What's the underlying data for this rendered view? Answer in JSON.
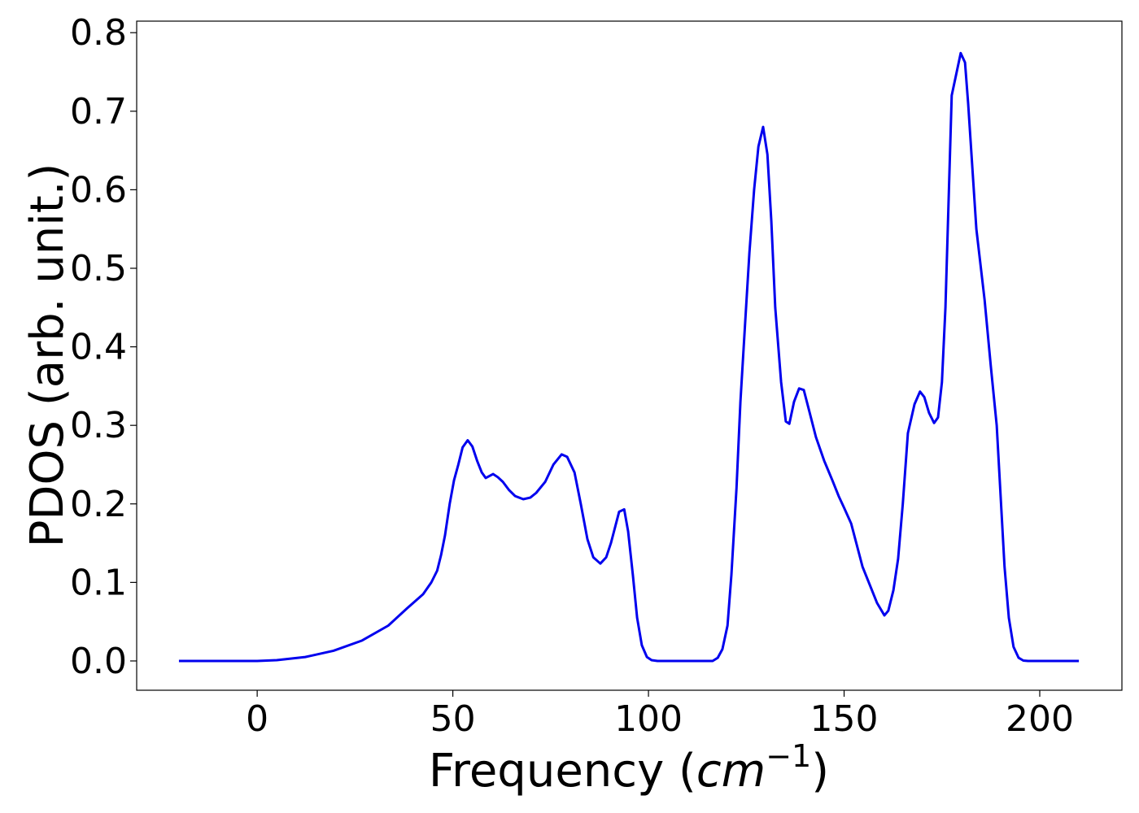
{
  "chart_data": {
    "type": "line",
    "xlabel_parts": [
      "Frequency (",
      "cm",
      "−1",
      ")"
    ],
    "ylabel": "PDOS (arb. unit.)",
    "xlim": [
      -30.8,
      221
    ],
    "xticks": [
      0,
      50,
      100,
      150,
      200
    ],
    "ylim": [
      -0.0373,
      0.8147
    ],
    "yticks": [
      {
        "value": 0,
        "label": "0.0"
      },
      0.1,
      0.2,
      0.3,
      0.4,
      0.5,
      0.6,
      0.7,
      0.8
    ],
    "x": [
      -20,
      0,
      5,
      12.3,
      19.5,
      26.8,
      33.5,
      38.3,
      42.4,
      44.5,
      46,
      47,
      48,
      49.2,
      50.3,
      51.4,
      52.5,
      53.8,
      55,
      56.2,
      57.4,
      58.4,
      60.3,
      61.5,
      62.8,
      64.3,
      65.9,
      68,
      69.8,
      71.3,
      73.6,
      75.7,
      77.8,
      79.2,
      81.1,
      82.7,
      84.4,
      85.9,
      87.7,
      89.2,
      90.4,
      92.5,
      93.8,
      94.8,
      96,
      97.1,
      98.3,
      99.6,
      100.8,
      102.3,
      116.4,
      117.7,
      118.9,
      120.2,
      121.2,
      122.5,
      123.5,
      124.7,
      125.8,
      127,
      128.1,
      129.3,
      130.4,
      131.4,
      132.4,
      133.9,
      135.1,
      136,
      137.2,
      138.5,
      139.7,
      141,
      142.8,
      144.9,
      147,
      148.6,
      150,
      151.8,
      154.7,
      158.4,
      160.3,
      161.3,
      162.6,
      163.8,
      165,
      166.3,
      168,
      169.4,
      170.5,
      171.7,
      173,
      174,
      175,
      175.9,
      177.5,
      179.8,
      180.9,
      181.7,
      183.8,
      185.9,
      187.5,
      189,
      191,
      192.1,
      193.3,
      194.6,
      195.8,
      197,
      210
    ],
    "series": [
      {
        "name": "PDOS",
        "color": "#0000ee",
        "values": [
          0,
          0,
          0.001,
          0.005,
          0.013,
          0.026,
          0.045,
          0.067,
          0.085,
          0.1,
          0.115,
          0.135,
          0.16,
          0.2,
          0.23,
          0.25,
          0.272,
          0.281,
          0.273,
          0.255,
          0.24,
          0.233,
          0.238,
          0.234,
          0.228,
          0.218,
          0.21,
          0.206,
          0.208,
          0.214,
          0.228,
          0.25,
          0.263,
          0.26,
          0.24,
          0.2,
          0.155,
          0.132,
          0.124,
          0.132,
          0.15,
          0.19,
          0.193,
          0.165,
          0.11,
          0.055,
          0.02,
          0.005,
          0.001,
          0,
          0,
          0.004,
          0.015,
          0.045,
          0.11,
          0.22,
          0.33,
          0.43,
          0.52,
          0.6,
          0.655,
          0.68,
          0.645,
          0.56,
          0.45,
          0.355,
          0.305,
          0.302,
          0.33,
          0.347,
          0.345,
          0.32,
          0.285,
          0.255,
          0.23,
          0.21,
          0.195,
          0.175,
          0.12,
          0.074,
          0.058,
          0.064,
          0.09,
          0.13,
          0.2,
          0.29,
          0.327,
          0.343,
          0.336,
          0.316,
          0.303,
          0.31,
          0.355,
          0.45,
          0.72,
          0.774,
          0.762,
          0.71,
          0.55,
          0.46,
          0.375,
          0.3,
          0.12,
          0.055,
          0.018,
          0.004,
          0.0005,
          0,
          0
        ]
      }
    ]
  }
}
